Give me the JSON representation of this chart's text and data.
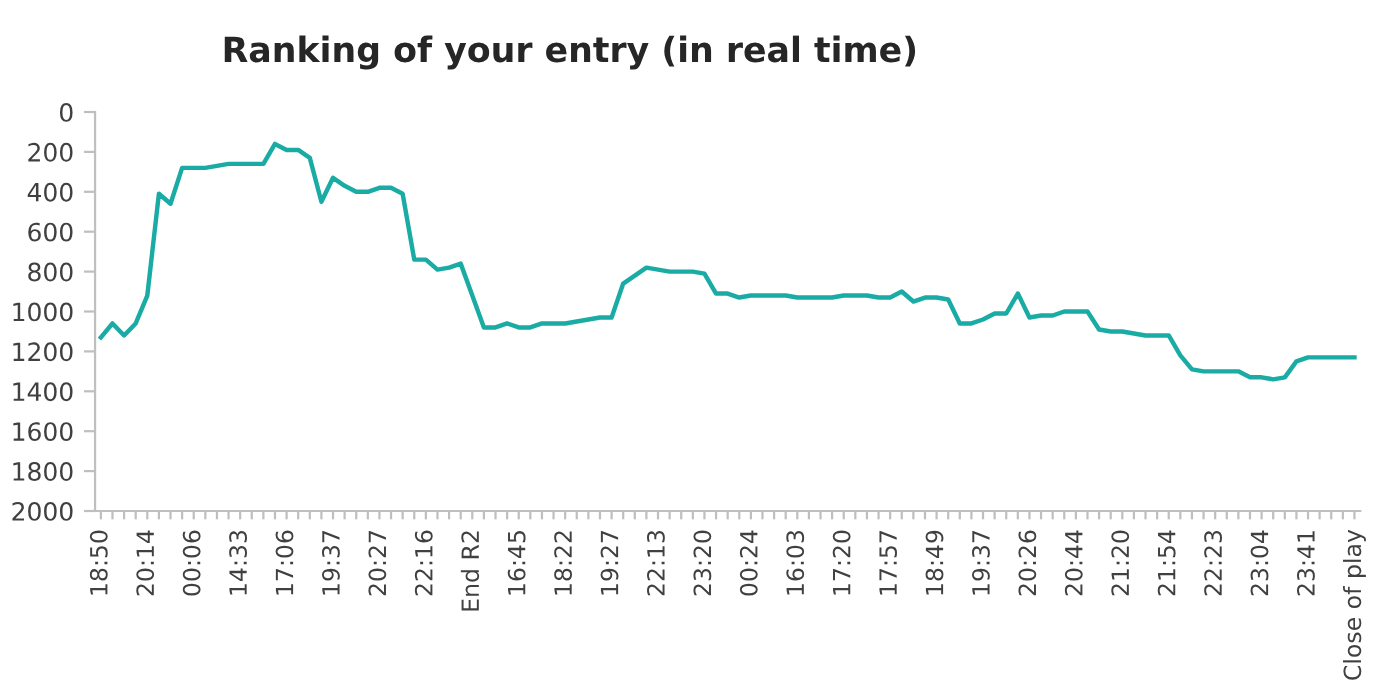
{
  "chart_data": {
    "type": "line",
    "title": "Ranking of your entry (in real time)",
    "categories": [
      "18:50",
      null,
      null,
      null,
      "20:14",
      null,
      null,
      null,
      "00:06",
      null,
      null,
      null,
      "14:33",
      null,
      null,
      null,
      "17:06",
      null,
      null,
      null,
      "19:37",
      null,
      null,
      null,
      "20:27",
      null,
      null,
      null,
      "22:16",
      null,
      null,
      null,
      "End R2",
      null,
      null,
      null,
      "16:45",
      null,
      null,
      null,
      "18:22",
      null,
      null,
      null,
      "19:27",
      null,
      null,
      null,
      "22:13",
      null,
      null,
      null,
      "23:20",
      null,
      null,
      null,
      "00:24",
      null,
      null,
      null,
      "16:03",
      null,
      null,
      null,
      "17:20",
      null,
      null,
      null,
      "17:57",
      null,
      null,
      null,
      "18:49",
      null,
      null,
      null,
      "19:37",
      null,
      null,
      null,
      "20:26",
      null,
      null,
      null,
      "20:44",
      null,
      null,
      null,
      "21:20",
      null,
      null,
      null,
      "21:54",
      null,
      null,
      null,
      "22:23",
      null,
      null,
      null,
      "23:04",
      null,
      null,
      null,
      "23:41",
      null,
      null,
      null,
      "Close of play"
    ],
    "series": [
      {
        "color": "#1aaca4",
        "values": [
          1130,
          1060,
          1120,
          1060,
          920,
          410,
          460,
          280,
          280,
          280,
          270,
          260,
          260,
          260,
          260,
          160,
          190,
          190,
          230,
          450,
          330,
          370,
          400,
          400,
          380,
          380,
          410,
          740,
          740,
          790,
          780,
          760,
          920,
          1080,
          1080,
          1060,
          1080,
          1080,
          1060,
          1060,
          1060,
          1050,
          1040,
          1030,
          1030,
          860,
          820,
          780,
          790,
          800,
          800,
          800,
          810,
          910,
          910,
          930,
          920,
          920,
          920,
          920,
          930,
          930,
          930,
          930,
          920,
          920,
          920,
          930,
          930,
          900,
          950,
          930,
          930,
          940,
          1060,
          1060,
          1040,
          1010,
          1010,
          910,
          1030,
          1020,
          1020,
          1000,
          1000,
          1000,
          1090,
          1100,
          1100,
          1110,
          1120,
          1120,
          1120,
          1220,
          1290,
          1300,
          1300,
          1300,
          1300,
          1330,
          1330,
          1340,
          1330,
          1250,
          1230,
          1230,
          1230,
          1230,
          1230
        ]
      }
    ],
    "ylim": [
      2000,
      0
    ],
    "yticks": [
      0,
      200,
      400,
      600,
      800,
      1000,
      1200,
      1400,
      1600,
      1800,
      2000
    ],
    "grid": false,
    "marker": "none",
    "line_style": "solid"
  }
}
